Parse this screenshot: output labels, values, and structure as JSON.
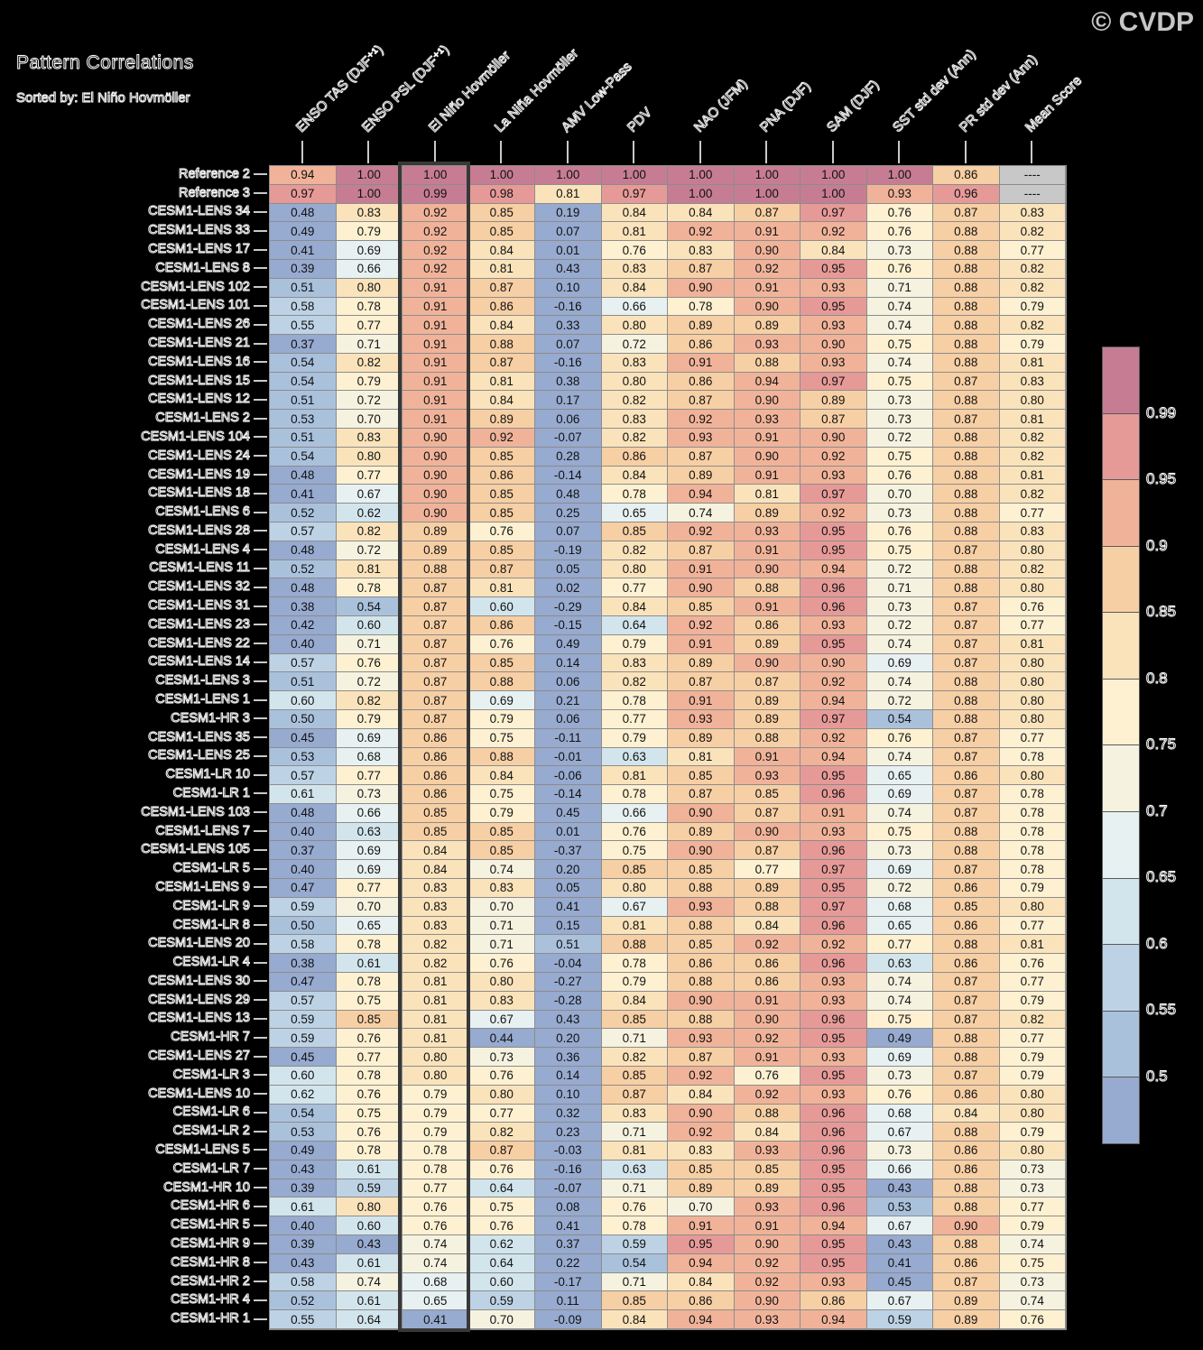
{
  "title": "Pattern Correlations",
  "subtitle": "Sorted by: El Niño Hovmöller",
  "watermark": "© CVDP",
  "chart_data": {
    "type": "heatmap",
    "columns": [
      "ENSO TAS (DJF⁺¹)",
      "ENSO PSL (DJF⁺¹)",
      "El Niño Hovmöller",
      "La Niña Hovmöller",
      "AMV Low-Pass",
      "PDV",
      "NAO (JFM)",
      "PNA (DJF)",
      "SAM (DJF)",
      "SST std dev (Ann)",
      "PR std dev (Ann)",
      "Mean Score"
    ],
    "highlighted_column": "El Niño Hovmöller",
    "missing_value_text": "----",
    "missing_color": "#c8c8c8",
    "grid_line_color": "#8c8c8c",
    "highlight_border_color": "#383838",
    "colorbar": {
      "tick_labels": [
        "0.99",
        "0.95",
        "0.9",
        "0.85",
        "0.8",
        "0.75",
        "0.7",
        "0.65",
        "0.6",
        "0.55",
        "0.5"
      ],
      "bin_thresholds": [
        0.99,
        0.95,
        0.9,
        0.85,
        0.8,
        0.75,
        0.7,
        0.65,
        0.6,
        0.55,
        0.5
      ],
      "segment_colors": [
        "#c67d93",
        "#e69a98",
        "#f0b399",
        "#f7cfa4",
        "#fae3bb",
        "#fdf1d2",
        "#f5f2e0",
        "#e8f1f1",
        "#d3e5ec",
        "#bdd3e5",
        "#aac1dc",
        "#97aacf"
      ]
    },
    "rows": [
      {
        "label": "Reference 2",
        "values": [
          "0.94",
          "1.00",
          "1.00",
          "1.00",
          "1.00",
          "1.00",
          "1.00",
          "1.00",
          "1.00",
          "1.00",
          "0.86",
          "----"
        ]
      },
      {
        "label": "Reference 3",
        "values": [
          "0.97",
          "1.00",
          "0.99",
          "0.98",
          "0.81",
          "0.97",
          "1.00",
          "1.00",
          "1.00",
          "0.93",
          "0.96",
          "----"
        ]
      },
      {
        "label": "CESM1-LENS 34",
        "values": [
          "0.48",
          "0.83",
          "0.92",
          "0.85",
          "0.19",
          "0.84",
          "0.84",
          "0.87",
          "0.97",
          "0.76",
          "0.87",
          "0.83"
        ]
      },
      {
        "label": "CESM1-LENS 33",
        "values": [
          "0.49",
          "0.79",
          "0.92",
          "0.85",
          "0.07",
          "0.81",
          "0.92",
          "0.91",
          "0.92",
          "0.76",
          "0.88",
          "0.82"
        ]
      },
      {
        "label": "CESM1-LENS 17",
        "values": [
          "0.41",
          "0.69",
          "0.92",
          "0.84",
          "0.01",
          "0.76",
          "0.83",
          "0.90",
          "0.84",
          "0.73",
          "0.88",
          "0.77"
        ]
      },
      {
        "label": "CESM1-LENS 8",
        "values": [
          "0.39",
          "0.66",
          "0.92",
          "0.81",
          "0.43",
          "0.83",
          "0.87",
          "0.92",
          "0.95",
          "0.76",
          "0.88",
          "0.82"
        ]
      },
      {
        "label": "CESM1-LENS 102",
        "values": [
          "0.51",
          "0.80",
          "0.91",
          "0.87",
          "0.10",
          "0.84",
          "0.90",
          "0.91",
          "0.93",
          "0.71",
          "0.88",
          "0.82"
        ]
      },
      {
        "label": "CESM1-LENS 101",
        "values": [
          "0.58",
          "0.78",
          "0.91",
          "0.86",
          "-0.16",
          "0.66",
          "0.78",
          "0.90",
          "0.95",
          "0.74",
          "0.88",
          "0.79"
        ]
      },
      {
        "label": "CESM1-LENS 26",
        "values": [
          "0.55",
          "0.77",
          "0.91",
          "0.84",
          "0.33",
          "0.80",
          "0.89",
          "0.89",
          "0.93",
          "0.74",
          "0.88",
          "0.82"
        ]
      },
      {
        "label": "CESM1-LENS 21",
        "values": [
          "0.37",
          "0.71",
          "0.91",
          "0.88",
          "0.07",
          "0.72",
          "0.86",
          "0.93",
          "0.90",
          "0.75",
          "0.88",
          "0.79"
        ]
      },
      {
        "label": "CESM1-LENS 16",
        "values": [
          "0.54",
          "0.82",
          "0.91",
          "0.87",
          "-0.16",
          "0.83",
          "0.91",
          "0.88",
          "0.93",
          "0.74",
          "0.88",
          "0.81"
        ]
      },
      {
        "label": "CESM1-LENS 15",
        "values": [
          "0.54",
          "0.79",
          "0.91",
          "0.81",
          "0.38",
          "0.80",
          "0.86",
          "0.94",
          "0.97",
          "0.75",
          "0.87",
          "0.83"
        ]
      },
      {
        "label": "CESM1-LENS 12",
        "values": [
          "0.51",
          "0.72",
          "0.91",
          "0.84",
          "0.17",
          "0.82",
          "0.87",
          "0.90",
          "0.89",
          "0.73",
          "0.88",
          "0.80"
        ]
      },
      {
        "label": "CESM1-LENS 2",
        "values": [
          "0.53",
          "0.70",
          "0.91",
          "0.89",
          "0.06",
          "0.83",
          "0.92",
          "0.93",
          "0.87",
          "0.73",
          "0.87",
          "0.81"
        ]
      },
      {
        "label": "CESM1-LENS 104",
        "values": [
          "0.51",
          "0.83",
          "0.90",
          "0.92",
          "-0.07",
          "0.82",
          "0.93",
          "0.91",
          "0.90",
          "0.72",
          "0.88",
          "0.82"
        ]
      },
      {
        "label": "CESM1-LENS 24",
        "values": [
          "0.54",
          "0.80",
          "0.90",
          "0.85",
          "0.28",
          "0.86",
          "0.87",
          "0.90",
          "0.92",
          "0.75",
          "0.88",
          "0.82"
        ]
      },
      {
        "label": "CESM1-LENS 19",
        "values": [
          "0.48",
          "0.77",
          "0.90",
          "0.86",
          "-0.14",
          "0.84",
          "0.89",
          "0.91",
          "0.93",
          "0.76",
          "0.88",
          "0.81"
        ]
      },
      {
        "label": "CESM1-LENS 18",
        "values": [
          "0.41",
          "0.67",
          "0.90",
          "0.85",
          "0.48",
          "0.78",
          "0.94",
          "0.81",
          "0.97",
          "0.70",
          "0.88",
          "0.82"
        ]
      },
      {
        "label": "CESM1-LENS 6",
        "values": [
          "0.52",
          "0.62",
          "0.90",
          "0.85",
          "0.25",
          "0.65",
          "0.74",
          "0.89",
          "0.92",
          "0.73",
          "0.88",
          "0.77"
        ]
      },
      {
        "label": "CESM1-LENS 28",
        "values": [
          "0.57",
          "0.82",
          "0.89",
          "0.76",
          "0.07",
          "0.85",
          "0.92",
          "0.93",
          "0.95",
          "0.76",
          "0.88",
          "0.83"
        ]
      },
      {
        "label": "CESM1-LENS 4",
        "values": [
          "0.48",
          "0.72",
          "0.89",
          "0.85",
          "-0.19",
          "0.82",
          "0.87",
          "0.91",
          "0.95",
          "0.75",
          "0.87",
          "0.80"
        ]
      },
      {
        "label": "CESM1-LENS 11",
        "values": [
          "0.52",
          "0.81",
          "0.88",
          "0.87",
          "0.05",
          "0.80",
          "0.91",
          "0.90",
          "0.94",
          "0.72",
          "0.88",
          "0.82"
        ]
      },
      {
        "label": "CESM1-LENS 32",
        "values": [
          "0.48",
          "0.78",
          "0.87",
          "0.81",
          "0.02",
          "0.77",
          "0.90",
          "0.88",
          "0.96",
          "0.71",
          "0.88",
          "0.80"
        ]
      },
      {
        "label": "CESM1-LENS 31",
        "values": [
          "0.38",
          "0.54",
          "0.87",
          "0.60",
          "-0.29",
          "0.84",
          "0.85",
          "0.91",
          "0.96",
          "0.73",
          "0.87",
          "0.76"
        ]
      },
      {
        "label": "CESM1-LENS 23",
        "values": [
          "0.42",
          "0.60",
          "0.87",
          "0.86",
          "-0.15",
          "0.64",
          "0.92",
          "0.86",
          "0.93",
          "0.72",
          "0.87",
          "0.77"
        ]
      },
      {
        "label": "CESM1-LENS 22",
        "values": [
          "0.40",
          "0.71",
          "0.87",
          "0.76",
          "0.49",
          "0.79",
          "0.91",
          "0.89",
          "0.95",
          "0.74",
          "0.87",
          "0.81"
        ]
      },
      {
        "label": "CESM1-LENS 14",
        "values": [
          "0.57",
          "0.76",
          "0.87",
          "0.85",
          "0.14",
          "0.83",
          "0.89",
          "0.90",
          "0.90",
          "0.69",
          "0.87",
          "0.80"
        ]
      },
      {
        "label": "CESM1-LENS 3",
        "values": [
          "0.51",
          "0.72",
          "0.87",
          "0.88",
          "0.06",
          "0.82",
          "0.87",
          "0.87",
          "0.92",
          "0.74",
          "0.88",
          "0.80"
        ]
      },
      {
        "label": "CESM1-LENS 1",
        "values": [
          "0.60",
          "0.82",
          "0.87",
          "0.69",
          "0.21",
          "0.78",
          "0.91",
          "0.89",
          "0.94",
          "0.72",
          "0.88",
          "0.80"
        ]
      },
      {
        "label": "CESM1-HR 3",
        "values": [
          "0.50",
          "0.79",
          "0.87",
          "0.79",
          "0.06",
          "0.77",
          "0.93",
          "0.89",
          "0.97",
          "0.54",
          "0.88",
          "0.80"
        ]
      },
      {
        "label": "CESM1-LENS 35",
        "values": [
          "0.45",
          "0.69",
          "0.86",
          "0.75",
          "-0.11",
          "0.79",
          "0.89",
          "0.88",
          "0.92",
          "0.76",
          "0.87",
          "0.77"
        ]
      },
      {
        "label": "CESM1-LENS 25",
        "values": [
          "0.53",
          "0.68",
          "0.86",
          "0.88",
          "-0.01",
          "0.63",
          "0.81",
          "0.91",
          "0.94",
          "0.74",
          "0.87",
          "0.78"
        ]
      },
      {
        "label": "CESM1-LR 10",
        "values": [
          "0.57",
          "0.77",
          "0.86",
          "0.84",
          "-0.06",
          "0.81",
          "0.85",
          "0.93",
          "0.95",
          "0.65",
          "0.86",
          "0.80"
        ]
      },
      {
        "label": "CESM1-LR 1",
        "values": [
          "0.61",
          "0.73",
          "0.86",
          "0.75",
          "-0.14",
          "0.78",
          "0.87",
          "0.85",
          "0.96",
          "0.69",
          "0.87",
          "0.78"
        ]
      },
      {
        "label": "CESM1-LENS 103",
        "values": [
          "0.48",
          "0.66",
          "0.85",
          "0.79",
          "0.45",
          "0.66",
          "0.90",
          "0.87",
          "0.91",
          "0.74",
          "0.87",
          "0.78"
        ]
      },
      {
        "label": "CESM1-LENS 7",
        "values": [
          "0.40",
          "0.63",
          "0.85",
          "0.85",
          "0.01",
          "0.76",
          "0.89",
          "0.90",
          "0.93",
          "0.75",
          "0.88",
          "0.78"
        ]
      },
      {
        "label": "CESM1-LENS 105",
        "values": [
          "0.37",
          "0.69",
          "0.84",
          "0.85",
          "-0.37",
          "0.75",
          "0.90",
          "0.87",
          "0.96",
          "0.73",
          "0.88",
          "0.78"
        ]
      },
      {
        "label": "CESM1-LR 5",
        "values": [
          "0.40",
          "0.69",
          "0.84",
          "0.74",
          "0.20",
          "0.85",
          "0.85",
          "0.77",
          "0.97",
          "0.69",
          "0.87",
          "0.78"
        ]
      },
      {
        "label": "CESM1-LENS 9",
        "values": [
          "0.47",
          "0.77",
          "0.83",
          "0.83",
          "0.05",
          "0.80",
          "0.88",
          "0.89",
          "0.95",
          "0.72",
          "0.86",
          "0.79"
        ]
      },
      {
        "label": "CESM1-LR 9",
        "values": [
          "0.59",
          "0.70",
          "0.83",
          "0.70",
          "0.41",
          "0.67",
          "0.93",
          "0.88",
          "0.97",
          "0.68",
          "0.85",
          "0.80"
        ]
      },
      {
        "label": "CESM1-LR 8",
        "values": [
          "0.50",
          "0.65",
          "0.83",
          "0.71",
          "0.15",
          "0.81",
          "0.88",
          "0.84",
          "0.96",
          "0.65",
          "0.86",
          "0.77"
        ]
      },
      {
        "label": "CESM1-LENS 20",
        "values": [
          "0.58",
          "0.78",
          "0.82",
          "0.71",
          "0.51",
          "0.88",
          "0.85",
          "0.92",
          "0.92",
          "0.77",
          "0.88",
          "0.81"
        ]
      },
      {
        "label": "CESM1-LR 4",
        "values": [
          "0.38",
          "0.61",
          "0.82",
          "0.76",
          "-0.04",
          "0.78",
          "0.86",
          "0.86",
          "0.96",
          "0.63",
          "0.86",
          "0.76"
        ]
      },
      {
        "label": "CESM1-LENS 30",
        "values": [
          "0.47",
          "0.78",
          "0.81",
          "0.80",
          "-0.27",
          "0.79",
          "0.88",
          "0.86",
          "0.93",
          "0.74",
          "0.87",
          "0.77"
        ]
      },
      {
        "label": "CESM1-LENS 29",
        "values": [
          "0.57",
          "0.75",
          "0.81",
          "0.83",
          "-0.28",
          "0.84",
          "0.90",
          "0.91",
          "0.93",
          "0.74",
          "0.87",
          "0.79"
        ]
      },
      {
        "label": "CESM1-LENS 13",
        "values": [
          "0.59",
          "0.85",
          "0.81",
          "0.67",
          "0.43",
          "0.85",
          "0.88",
          "0.90",
          "0.96",
          "0.75",
          "0.87",
          "0.82"
        ]
      },
      {
        "label": "CESM1-HR 7",
        "values": [
          "0.59",
          "0.76",
          "0.81",
          "0.44",
          "0.20",
          "0.71",
          "0.93",
          "0.92",
          "0.95",
          "0.49",
          "0.88",
          "0.77"
        ]
      },
      {
        "label": "CESM1-LENS 27",
        "values": [
          "0.45",
          "0.77",
          "0.80",
          "0.73",
          "0.36",
          "0.82",
          "0.87",
          "0.91",
          "0.93",
          "0.69",
          "0.88",
          "0.79"
        ]
      },
      {
        "label": "CESM1-LR 3",
        "values": [
          "0.60",
          "0.78",
          "0.80",
          "0.76",
          "0.14",
          "0.85",
          "0.92",
          "0.76",
          "0.95",
          "0.73",
          "0.87",
          "0.79"
        ]
      },
      {
        "label": "CESM1-LENS 10",
        "values": [
          "0.62",
          "0.76",
          "0.79",
          "0.80",
          "0.10",
          "0.87",
          "0.84",
          "0.92",
          "0.93",
          "0.76",
          "0.86",
          "0.80"
        ]
      },
      {
        "label": "CESM1-LR 6",
        "values": [
          "0.54",
          "0.75",
          "0.79",
          "0.77",
          "0.32",
          "0.83",
          "0.90",
          "0.88",
          "0.96",
          "0.68",
          "0.84",
          "0.80"
        ]
      },
      {
        "label": "CESM1-LR 2",
        "values": [
          "0.53",
          "0.76",
          "0.79",
          "0.82",
          "0.23",
          "0.71",
          "0.92",
          "0.84",
          "0.96",
          "0.67",
          "0.88",
          "0.79"
        ]
      },
      {
        "label": "CESM1-LENS 5",
        "values": [
          "0.49",
          "0.78",
          "0.78",
          "0.87",
          "-0.03",
          "0.81",
          "0.83",
          "0.93",
          "0.96",
          "0.73",
          "0.86",
          "0.80"
        ]
      },
      {
        "label": "CESM1-LR 7",
        "values": [
          "0.43",
          "0.61",
          "0.78",
          "0.76",
          "-0.16",
          "0.63",
          "0.85",
          "0.85",
          "0.95",
          "0.66",
          "0.86",
          "0.73"
        ]
      },
      {
        "label": "CESM1-HR 10",
        "values": [
          "0.39",
          "0.59",
          "0.77",
          "0.64",
          "-0.07",
          "0.71",
          "0.89",
          "0.89",
          "0.95",
          "0.43",
          "0.88",
          "0.73"
        ]
      },
      {
        "label": "CESM1-HR 6",
        "values": [
          "0.61",
          "0.80",
          "0.76",
          "0.75",
          "0.08",
          "0.76",
          "0.70",
          "0.93",
          "0.96",
          "0.53",
          "0.88",
          "0.77"
        ]
      },
      {
        "label": "CESM1-HR 5",
        "values": [
          "0.40",
          "0.60",
          "0.76",
          "0.76",
          "0.41",
          "0.78",
          "0.91",
          "0.91",
          "0.94",
          "0.67",
          "0.90",
          "0.79"
        ]
      },
      {
        "label": "CESM1-HR 9",
        "values": [
          "0.39",
          "0.43",
          "0.74",
          "0.62",
          "0.37",
          "0.59",
          "0.95",
          "0.90",
          "0.95",
          "0.43",
          "0.88",
          "0.74"
        ]
      },
      {
        "label": "CESM1-HR 8",
        "values": [
          "0.43",
          "0.61",
          "0.74",
          "0.64",
          "0.22",
          "0.54",
          "0.94",
          "0.92",
          "0.95",
          "0.41",
          "0.86",
          "0.75"
        ]
      },
      {
        "label": "CESM1-HR 2",
        "values": [
          "0.58",
          "0.74",
          "0.68",
          "0.60",
          "-0.17",
          "0.71",
          "0.84",
          "0.92",
          "0.93",
          "0.45",
          "0.87",
          "0.73"
        ]
      },
      {
        "label": "CESM1-HR 4",
        "values": [
          "0.52",
          "0.61",
          "0.65",
          "0.59",
          "0.11",
          "0.85",
          "0.86",
          "0.90",
          "0.86",
          "0.67",
          "0.89",
          "0.74"
        ]
      },
      {
        "label": "CESM1-HR 1",
        "values": [
          "0.55",
          "0.64",
          "0.41",
          "0.70",
          "-0.09",
          "0.84",
          "0.94",
          "0.93",
          "0.94",
          "0.59",
          "0.89",
          "0.76"
        ]
      }
    ]
  }
}
